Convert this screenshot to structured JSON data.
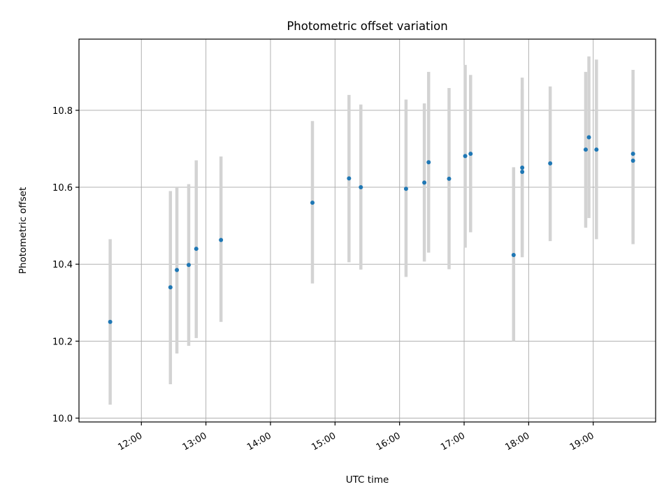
{
  "chart_data": {
    "type": "scatter",
    "title": "Photometric offset variation",
    "xlabel": "UTC time",
    "ylabel": "Photometric offset",
    "x_format": "HH:MM",
    "xlim": [
      "11:02",
      "19:58"
    ],
    "ylim": [
      9.99,
      10.985
    ],
    "x_ticks": [
      "12:00",
      "13:00",
      "14:00",
      "15:00",
      "16:00",
      "17:00",
      "18:00",
      "19:00"
    ],
    "y_ticks": [
      "10.0",
      "10.2",
      "10.4",
      "10.6",
      "10.8"
    ],
    "grid": true,
    "marker_color": "#1f77b4",
    "errorbar_color": "#d3d3d3",
    "points": [
      {
        "x": "11:31",
        "y": 10.25,
        "lo": 10.035,
        "hi": 10.465
      },
      {
        "x": "12:27",
        "y": 10.34,
        "lo": 10.088,
        "hi": 10.59
      },
      {
        "x": "12:33",
        "y": 10.385,
        "lo": 10.168,
        "hi": 10.6
      },
      {
        "x": "12:44",
        "y": 10.398,
        "lo": 10.188,
        "hi": 10.608
      },
      {
        "x": "12:51",
        "y": 10.44,
        "lo": 10.208,
        "hi": 10.67
      },
      {
        "x": "13:14",
        "y": 10.463,
        "lo": 10.25,
        "hi": 10.68
      },
      {
        "x": "14:39",
        "y": 10.56,
        "lo": 10.35,
        "hi": 10.772
      },
      {
        "x": "15:13",
        "y": 10.623,
        "lo": 10.405,
        "hi": 10.84
      },
      {
        "x": "15:24",
        "y": 10.6,
        "lo": 10.386,
        "hi": 10.815
      },
      {
        "x": "16:06",
        "y": 10.596,
        "lo": 10.367,
        "hi": 10.828
      },
      {
        "x": "16:23",
        "y": 10.612,
        "lo": 10.407,
        "hi": 10.818
      },
      {
        "x": "16:27",
        "y": 10.665,
        "lo": 10.43,
        "hi": 10.9
      },
      {
        "x": "16:46",
        "y": 10.622,
        "lo": 10.387,
        "hi": 10.858
      },
      {
        "x": "17:01",
        "y": 10.681,
        "lo": 10.443,
        "hi": 10.918
      },
      {
        "x": "17:06",
        "y": 10.687,
        "lo": 10.483,
        "hi": 10.892
      },
      {
        "x": "17:46",
        "y": 10.424,
        "lo": 10.2,
        "hi": 10.652
      },
      {
        "x": "17:54",
        "y": 10.64,
        "lo": 10.418,
        "hi": 10.855
      },
      {
        "x": "17:54",
        "y": 10.651,
        "lo": 10.43,
        "hi": 10.885
      },
      {
        "x": "18:20",
        "y": 10.662,
        "lo": 10.46,
        "hi": 10.862
      },
      {
        "x": "18:53",
        "y": 10.698,
        "lo": 10.495,
        "hi": 10.9
      },
      {
        "x": "18:56",
        "y": 10.73,
        "lo": 10.52,
        "hi": 10.94
      },
      {
        "x": "19:03",
        "y": 10.698,
        "lo": 10.465,
        "hi": 10.932
      },
      {
        "x": "19:37",
        "y": 10.687,
        "lo": 10.47,
        "hi": 10.905
      },
      {
        "x": "19:37",
        "y": 10.669,
        "lo": 10.452,
        "hi": 10.885
      }
    ]
  }
}
